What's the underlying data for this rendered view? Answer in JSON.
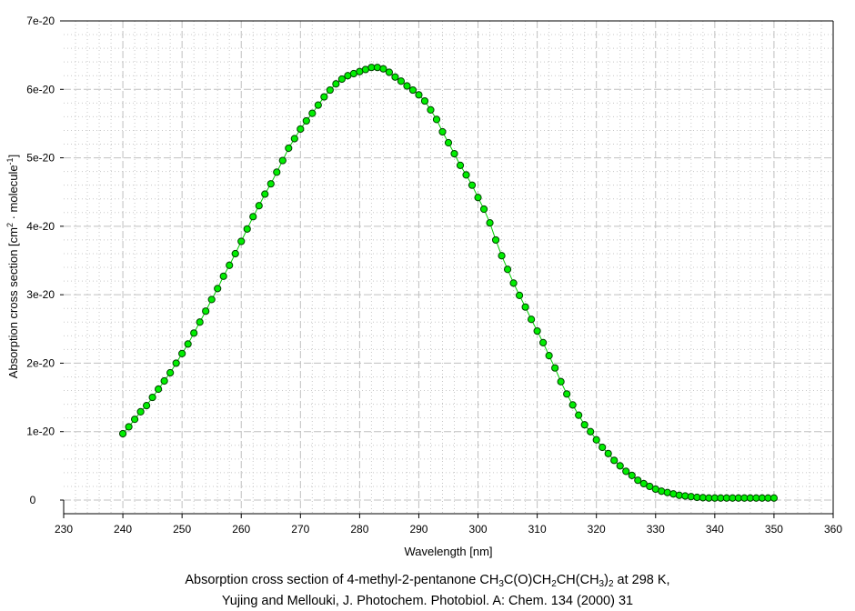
{
  "chart_data": {
    "type": "scatter",
    "title": "",
    "xlabel": "Wavelength [nm]",
    "ylabel": {
      "main": "Absorption cross section [cm",
      "sup1": "2",
      "mid": " · molecule",
      "sup2": "-1",
      "end": "]"
    },
    "xlim": [
      230,
      360
    ],
    "ylim": [
      -2e-21,
      7e-20
    ],
    "y_unit": 1e-20,
    "x_ticks": [
      230,
      240,
      250,
      260,
      270,
      280,
      290,
      300,
      310,
      320,
      330,
      340,
      350,
      360
    ],
    "x_tick_labels": [
      "230",
      "240",
      "250",
      "260",
      "270",
      "280",
      "290",
      "300",
      "310",
      "320",
      "330",
      "340",
      "350",
      "360"
    ],
    "y_ticks": [
      0,
      1,
      2,
      3,
      4,
      5,
      6,
      7
    ],
    "y_tick_labels": [
      "0",
      "1e-20",
      "2e-20",
      "3e-20",
      "4e-20",
      "5e-20",
      "6e-20",
      "7e-20"
    ],
    "grid": true,
    "series": [
      {
        "name": "4-methyl-2-pentanone",
        "marker_color": "#00ee00",
        "line_color": "#00cc00",
        "x_start": 240,
        "x_step": 1,
        "values_in_y_unit": [
          0.97,
          1.07,
          1.18,
          1.29,
          1.38,
          1.5,
          1.62,
          1.74,
          1.86,
          2.0,
          2.14,
          2.28,
          2.44,
          2.6,
          2.76,
          2.93,
          3.09,
          3.27,
          3.43,
          3.6,
          3.78,
          3.96,
          4.14,
          4.3,
          4.47,
          4.62,
          4.79,
          4.96,
          5.14,
          5.28,
          5.42,
          5.54,
          5.65,
          5.77,
          5.89,
          5.99,
          6.08,
          6.15,
          6.2,
          6.23,
          6.26,
          6.29,
          6.32,
          6.32,
          6.3,
          6.25,
          6.18,
          6.12,
          6.05,
          5.99,
          5.92,
          5.83,
          5.7,
          5.56,
          5.38,
          5.22,
          5.06,
          4.89,
          4.75,
          4.6,
          4.42,
          4.25,
          4.05,
          3.8,
          3.57,
          3.37,
          3.17,
          2.99,
          2.82,
          2.64,
          2.47,
          2.3,
          2.11,
          1.93,
          1.73,
          1.55,
          1.39,
          1.24,
          1.1,
          1.0,
          0.88,
          0.77,
          0.68,
          0.58,
          0.5,
          0.42,
          0.36,
          0.29,
          0.24,
          0.2,
          0.16,
          0.13,
          0.11,
          0.09,
          0.07,
          0.06,
          0.05,
          0.04,
          0.035,
          0.03,
          0.03,
          0.03,
          0.03,
          0.03,
          0.03,
          0.03,
          0.03,
          0.03,
          0.03,
          0.03,
          0.03
        ]
      }
    ]
  },
  "caption": {
    "line1": {
      "a": "Absorption cross section of 4-methyl-2-pentanone CH",
      "s1": "3",
      "b": "C(O)CH",
      "s2": "2",
      "c": "CH(CH",
      "s3": "3",
      "d": ")",
      "s4": "2",
      "e": " at 298 K,"
    },
    "line2": "Yujing and Mellouki, J. Photochem. Photobiol. A: Chem. 134 (2000) 31"
  }
}
